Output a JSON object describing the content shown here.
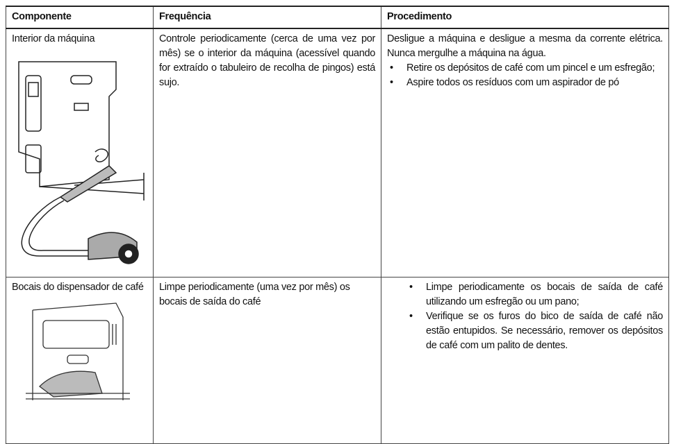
{
  "table": {
    "header": [
      "Componente",
      "Frequência",
      "Procedimento"
    ],
    "rows": [
      {
        "component": "Interior da máquina",
        "frequency": "Controle periodicamente (cerca de uma vez por mês) se o interior da máquina (acessível quando for extraído o tabuleiro de recolha de pingos) está sujo.",
        "procedure": {
          "text": "Desligue a máquina e desligue a mesma da corrente elétrica. Nunca mergulhe a máquina na água.",
          "bullets": [
            "Retire os depósitos de café com um pincel e um esfregão;",
            "Aspire todos os resíduos com um aspirador de pó"
          ]
        }
      },
      {
        "component": "Bocais do dispensador de café",
        "frequency": "Limpe periodicamente (uma vez por mês) os bocais de saída do café",
        "procedure": {
          "bullets": [
            "Limpe periodicamente os bocais de saída de café utilizando um esfregão ou um pano;",
            "Verifique se os furos do bico de saída de café não estão entupidos. Se necessário, remover os depósitos de café com um palito de dentes."
          ]
        }
      }
    ]
  }
}
